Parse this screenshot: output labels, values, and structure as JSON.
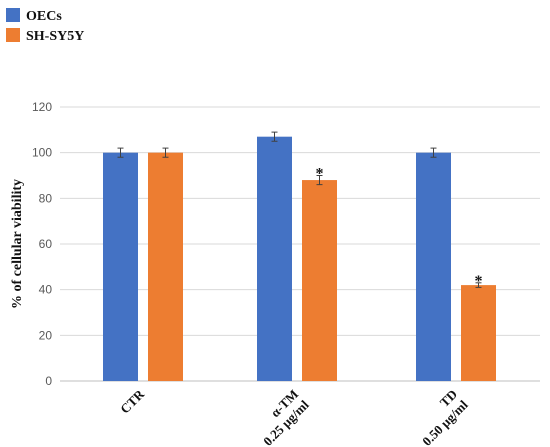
{
  "chart_data": {
    "type": "bar",
    "categories": [
      [
        "CTR"
      ],
      [
        "α-TM",
        "0.25 μg/ml"
      ],
      [
        "TD",
        "0.50 μg/ml"
      ]
    ],
    "series": [
      {
        "name": "OECs",
        "color": "#4472C4",
        "values": [
          100,
          107,
          100
        ],
        "errors": [
          2,
          2,
          2
        ],
        "significance": [
          "",
          "",
          ""
        ]
      },
      {
        "name": "SH-SY5Y",
        "color": "#ED7D31",
        "values": [
          100,
          88,
          42
        ],
        "errors": [
          2,
          2,
          1
        ],
        "significance": [
          "",
          "*",
          "*"
        ]
      }
    ],
    "ylabel": "% of cellular viability",
    "ylim": [
      0,
      120
    ],
    "yticks": [
      0,
      20,
      40,
      60,
      80,
      100,
      120
    ],
    "grid": true,
    "legend_position": "top-left"
  }
}
